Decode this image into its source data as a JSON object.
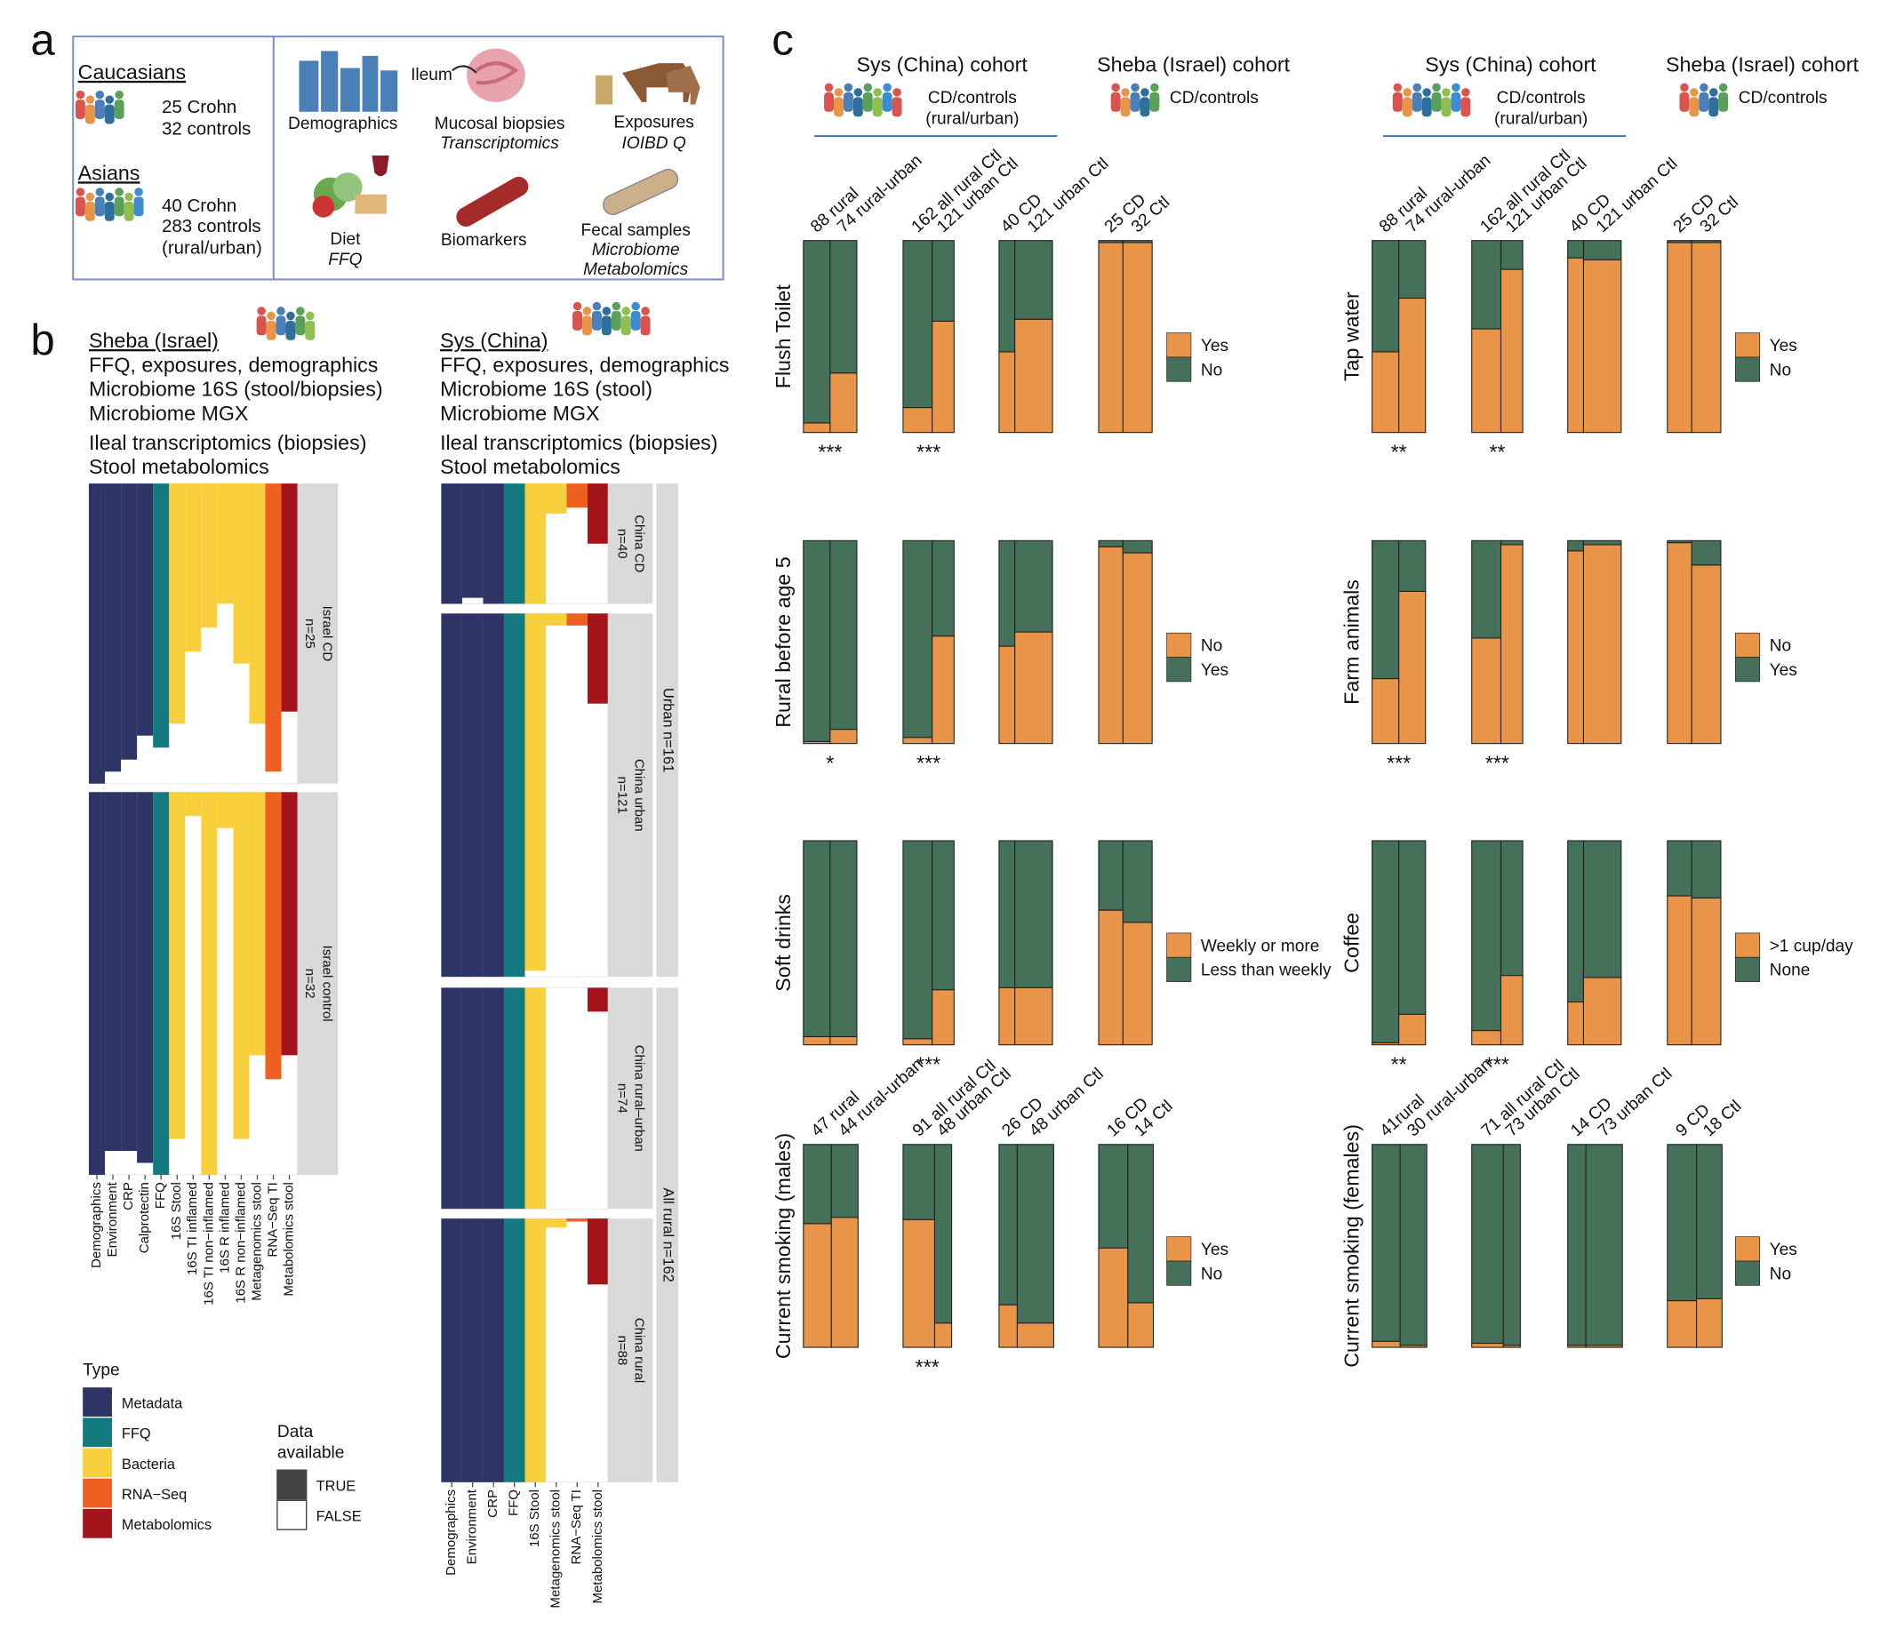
{
  "panel_a": {
    "label": "a",
    "groups": [
      {
        "title": "Caucasians",
        "lines": [
          "25 Crohn",
          "32 controls"
        ]
      },
      {
        "title": "Asians",
        "lines": [
          "40 Crohn",
          "283 controls",
          "(rural/urban)"
        ]
      }
    ],
    "items": {
      "demographics": "Demographics",
      "ileum": "Ileum",
      "biopsies": "Mucosal biopsies",
      "transcriptomics": "Transcriptomics",
      "exposures": "Exposures",
      "ioibd": "IOIBD Q",
      "diet": "Diet",
      "ffq": "FFQ",
      "biomarkers": "Biomarkers",
      "fecal": "Fecal samples",
      "microbiome": "Microbiome",
      "metabolomics": "Metabolomics"
    }
  },
  "panel_b": {
    "label": "b",
    "sheba": {
      "title": "Sheba (Israel)",
      "lines": [
        "FFQ, exposures, demographics",
        "Microbiome 16S (stool/biopsies)",
        "Microbiome MGX",
        "Ileal transcriptomics (biopsies)",
        "Stool metabolomics"
      ],
      "columns": [
        {
          "label": "Demographics",
          "type": "Metadata"
        },
        {
          "label": "Environment",
          "type": "Metadata"
        },
        {
          "label": "CRP",
          "type": "Metadata"
        },
        {
          "label": "Calprotectin",
          "type": "Metadata"
        },
        {
          "label": "FFQ",
          "type": "FFQ"
        },
        {
          "label": "16S Stool",
          "type": "Bacteria"
        },
        {
          "label": "16S TI inflamed",
          "type": "Bacteria"
        },
        {
          "label": "16S TI non−inflamed",
          "type": "Bacteria"
        },
        {
          "label": "16S R inflamed",
          "type": "Bacteria"
        },
        {
          "label": "16S R non−inflamed",
          "type": "Bacteria"
        },
        {
          "label": "Metagenomics stool",
          "type": "Bacteria"
        },
        {
          "label": "RNA−Seq TI",
          "type": "RNA−Seq"
        },
        {
          "label": "Metabolomics stool",
          "type": "Metabolomics"
        }
      ],
      "groups": [
        {
          "label": "Israel CD",
          "n": {
            "value": 25,
            "label": "n=25"
          },
          "available": [
            25,
            24,
            23,
            21,
            22,
            20,
            14,
            12,
            10,
            15,
            20,
            24,
            19
          ]
        },
        {
          "label": "Israel control",
          "n": {
            "value": 32,
            "label": "n=32"
          },
          "available": [
            32,
            30,
            30,
            31,
            32,
            29,
            2,
            32,
            3,
            29,
            22,
            24,
            22
          ]
        }
      ]
    },
    "sys": {
      "title": "Sys (China)",
      "lines": [
        "FFQ, exposures, demographics",
        "Microbiome 16S (stool)",
        "Microbiome MGX",
        "Ileal transcriptomics (biopsies)",
        "Stool metabolomics"
      ],
      "columns": [
        {
          "label": "Demographics",
          "type": "Metadata"
        },
        {
          "label": "Environment",
          "type": "Metadata"
        },
        {
          "label": "CRP",
          "type": "Metadata"
        },
        {
          "label": "FFQ",
          "type": "FFQ"
        },
        {
          "label": "16S Stool",
          "type": "Bacteria"
        },
        {
          "label": "Metagenomics stool",
          "type": "Bacteria"
        },
        {
          "label": "RNA−Seq TI",
          "type": "RNA−Seq"
        },
        {
          "label": "Metabolomics stool",
          "type": "Metabolomics"
        }
      ],
      "groups": [
        {
          "label": "China CD",
          "n": {
            "value": 40,
            "label": "n=40"
          },
          "available": [
            40,
            38,
            40,
            40,
            40,
            10,
            8,
            20
          ]
        },
        {
          "label": "China urban",
          "n": {
            "value": 121,
            "label": "n=121"
          },
          "available": [
            121,
            121,
            121,
            121,
            119,
            4,
            4,
            30
          ]
        },
        {
          "label": "China rural–urban",
          "n": {
            "value": 74,
            "label": "n=74"
          },
          "available": [
            74,
            74,
            74,
            74,
            74,
            0,
            0,
            8
          ]
        },
        {
          "label": "China rural",
          "n": {
            "value": 88,
            "label": "n=88"
          },
          "available": [
            88,
            88,
            88,
            88,
            88,
            3,
            1,
            22
          ]
        }
      ],
      "outer": [
        "Urban n=161",
        "All rural n=162"
      ]
    },
    "legend": {
      "type_title": "Type",
      "types": [
        {
          "name": "Metadata",
          "color": "#2e3466"
        },
        {
          "name": "FFQ",
          "color": "#137a80"
        },
        {
          "name": "Bacteria",
          "color": "#f8cf3d"
        },
        {
          "name": "RNA−Seq",
          "color": "#f05f22"
        },
        {
          "name": "Metabolomics",
          "color": "#a3141b"
        }
      ],
      "avail_title": [
        "Data",
        "available"
      ],
      "avail": [
        "TRUE",
        "FALSE"
      ]
    }
  },
  "panel_c": {
    "label": "c",
    "headers": {
      "sys": "Sys (China) cohort",
      "sheba": "Sheba (Israel) cohort",
      "sys_sub": [
        "CD/controls",
        "(rural/urban)"
      ],
      "sheba_sub": "CD/controls"
    },
    "columns": [
      {
        "charts": [
          {
            "type": "bar",
            "ylabel": "Flush Toilet",
            "categories": [
              "88 rural",
              "74 rural-urban",
              "162 all rural Ctl",
              "121 urban Ctl",
              "40 CD",
              "121 urban Ctl",
              "25 CD",
              "32 Ctl"
            ],
            "series": [
              {
                "name": "Yes",
                "color": "#e8954a",
                "values": [
                  5,
                  31,
                  13,
                  58,
                  42,
                  59,
                  99,
                  99
                ]
              },
              {
                "name": "No",
                "color": "#45705a",
                "values": [
                  95,
                  69,
                  87,
                  42,
                  58,
                  41,
                  1,
                  1
                ]
              }
            ],
            "significance": [
              "***",
              "***",
              null,
              null
            ]
          },
          {
            "type": "bar",
            "ylabel": "Rural before age 5",
            "series": [
              {
                "name": "No",
                "color": "#e8954a",
                "values": [
                  1,
                  7,
                  3,
                  53,
                  48,
                  55,
                  97,
                  94
                ]
              },
              {
                "name": "Yes",
                "color": "#45705a",
                "values": [
                  99,
                  93,
                  97,
                  47,
                  52,
                  45,
                  3,
                  6
                ]
              }
            ],
            "significance": [
              "*",
              "***",
              null,
              null
            ]
          },
          {
            "type": "bar",
            "ylabel": "Soft drinks",
            "series": [
              {
                "name": "Weekly or more",
                "color": "#e8954a",
                "values": [
                  4,
                  4,
                  3,
                  27,
                  28,
                  28,
                  66,
                  60
                ]
              },
              {
                "name": "Less than weekly",
                "color": "#45705a",
                "values": [
                  96,
                  96,
                  97,
                  73,
                  72,
                  72,
                  34,
                  40
                ]
              }
            ],
            "significance": [
              null,
              "***",
              null,
              null
            ]
          },
          {
            "type": "bar",
            "ylabel": "Current smoking (males)",
            "categories": [
              "47 rural",
              "44 rural-urban",
              "91 all rural Ctl",
              "48 urban Ctl",
              "26 CD",
              "48 urban Ctl",
              "16 CD",
              "14 Ctl"
            ],
            "series": [
              {
                "name": "Yes",
                "color": "#e8954a",
                "values": [
                  61,
                  64,
                  63,
                  12,
                  21,
                  12,
                  49,
                  22
                ]
              },
              {
                "name": "No",
                "color": "#45705a",
                "values": [
                  39,
                  36,
                  37,
                  88,
                  79,
                  88,
                  51,
                  78
                ]
              }
            ],
            "significance": [
              null,
              "***",
              null,
              null
            ]
          }
        ]
      },
      {
        "charts": [
          {
            "type": "bar",
            "ylabel": "Tap water",
            "categories": [
              "88 rural",
              "74 rural-urban",
              "162 all rural Ctl",
              "121 urban Ctl",
              "40 CD",
              "121 urban Ctl",
              "25 CD",
              "32 Ctl"
            ],
            "series": [
              {
                "name": "Yes",
                "color": "#e8954a",
                "values": [
                  42,
                  70,
                  54,
                  85,
                  91,
                  90,
                  99,
                  99
                ]
              },
              {
                "name": "No",
                "color": "#45705a",
                "values": [
                  58,
                  30,
                  46,
                  15,
                  9,
                  10,
                  1,
                  1
                ]
              }
            ],
            "significance": [
              "**",
              "**",
              null,
              null
            ]
          },
          {
            "type": "bar",
            "ylabel": "Farm animals",
            "series": [
              {
                "name": "No",
                "color": "#e8954a",
                "values": [
                  32,
                  75,
                  52,
                  98,
                  95,
                  98,
                  99,
                  88
                ]
              },
              {
                "name": "Yes",
                "color": "#45705a",
                "values": [
                  68,
                  25,
                  48,
                  2,
                  5,
                  2,
                  1,
                  12
                ]
              }
            ],
            "significance": [
              "***",
              "***",
              null,
              null
            ]
          },
          {
            "type": "bar",
            "ylabel": "Coffee",
            "series": [
              {
                "name": ">1 cup/day",
                "color": "#e8954a",
                "values": [
                  1,
                  15,
                  7,
                  34,
                  21,
                  33,
                  73,
                  72
                ]
              },
              {
                "name": "None",
                "color": "#45705a",
                "values": [
                  99,
                  85,
                  93,
                  66,
                  79,
                  67,
                  27,
                  28
                ]
              }
            ],
            "significance": [
              "**",
              "***",
              null,
              null
            ]
          },
          {
            "type": "bar",
            "ylabel": "Current smoking (females)",
            "categories": [
              "41rural",
              "30 rural-urban",
              "71 all rural Ctl",
              "73 urban Ctl",
              "14 CD",
              "73 urban Ctl",
              "9 CD",
              "18 Ctl"
            ],
            "series": [
              {
                "name": "Yes",
                "color": "#e8954a",
                "values": [
                  3,
                  1,
                  2,
                  1,
                  1,
                  1,
                  23,
                  24
                ]
              },
              {
                "name": "No",
                "color": "#45705a",
                "values": [
                  97,
                  99,
                  98,
                  99,
                  99,
                  99,
                  77,
                  76
                ]
              }
            ],
            "significance": [
              null,
              null,
              null,
              null
            ]
          }
        ]
      }
    ]
  }
}
